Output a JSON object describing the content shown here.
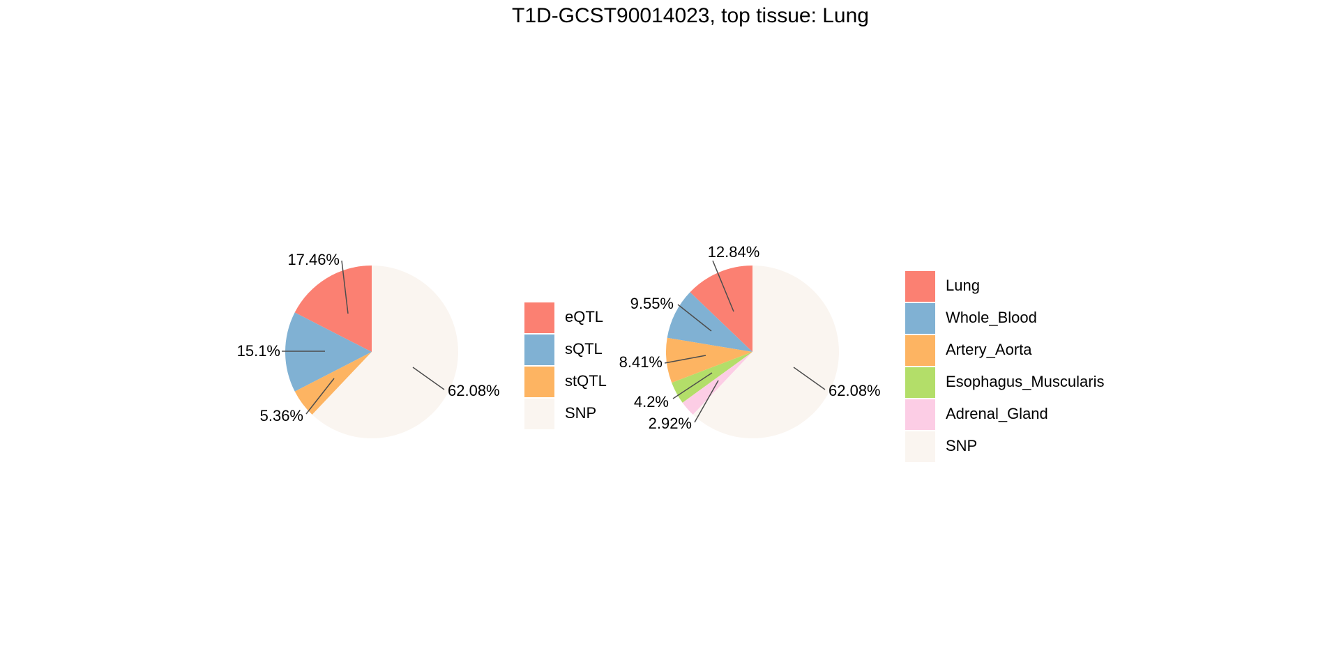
{
  "title": "T1D-GCST90014023, top tissue: Lung",
  "chart_data": [
    {
      "type": "pie",
      "title": "",
      "start_angle_deg": 0,
      "direction": "counterclockwise",
      "slices": [
        {
          "name": "eQTL",
          "value": 17.46,
          "label": "17.46%",
          "color": "#FB8072"
        },
        {
          "name": "sQTL",
          "value": 15.1,
          "label": "15.1%",
          "color": "#80B1D3"
        },
        {
          "name": "stQTL",
          "value": 5.36,
          "label": "5.36%",
          "color": "#FDB462"
        },
        {
          "name": "SNP",
          "value": 62.08,
          "label": "62.08%",
          "color": "#FAF5F0"
        }
      ],
      "legend": {
        "position": "right",
        "entries": [
          "eQTL",
          "sQTL",
          "stQTL",
          "SNP"
        ]
      }
    },
    {
      "type": "pie",
      "title": "",
      "start_angle_deg": 0,
      "direction": "counterclockwise",
      "slices": [
        {
          "name": "Lung",
          "value": 12.84,
          "label": "12.84%",
          "color": "#FB8072"
        },
        {
          "name": "Whole_Blood",
          "value": 9.55,
          "label": "9.55%",
          "color": "#80B1D3"
        },
        {
          "name": "Artery_Aorta",
          "value": 8.41,
          "label": "8.41%",
          "color": "#FDB462"
        },
        {
          "name": "Esophagus_Muscularis",
          "value": 4.2,
          "label": "4.2%",
          "color": "#B3DE69"
        },
        {
          "name": "Adrenal_Gland",
          "value": 2.92,
          "label": "2.92%",
          "color": "#FCCDE5"
        },
        {
          "name": "SNP",
          "value": 62.08,
          "label": "62.08%",
          "color": "#FAF5F0"
        }
      ],
      "legend": {
        "position": "right",
        "entries": [
          "Lung",
          "Whole_Blood",
          "Artery_Aorta",
          "Esophagus_Muscularis",
          "Adrenal_Gland",
          "SNP"
        ]
      }
    }
  ]
}
